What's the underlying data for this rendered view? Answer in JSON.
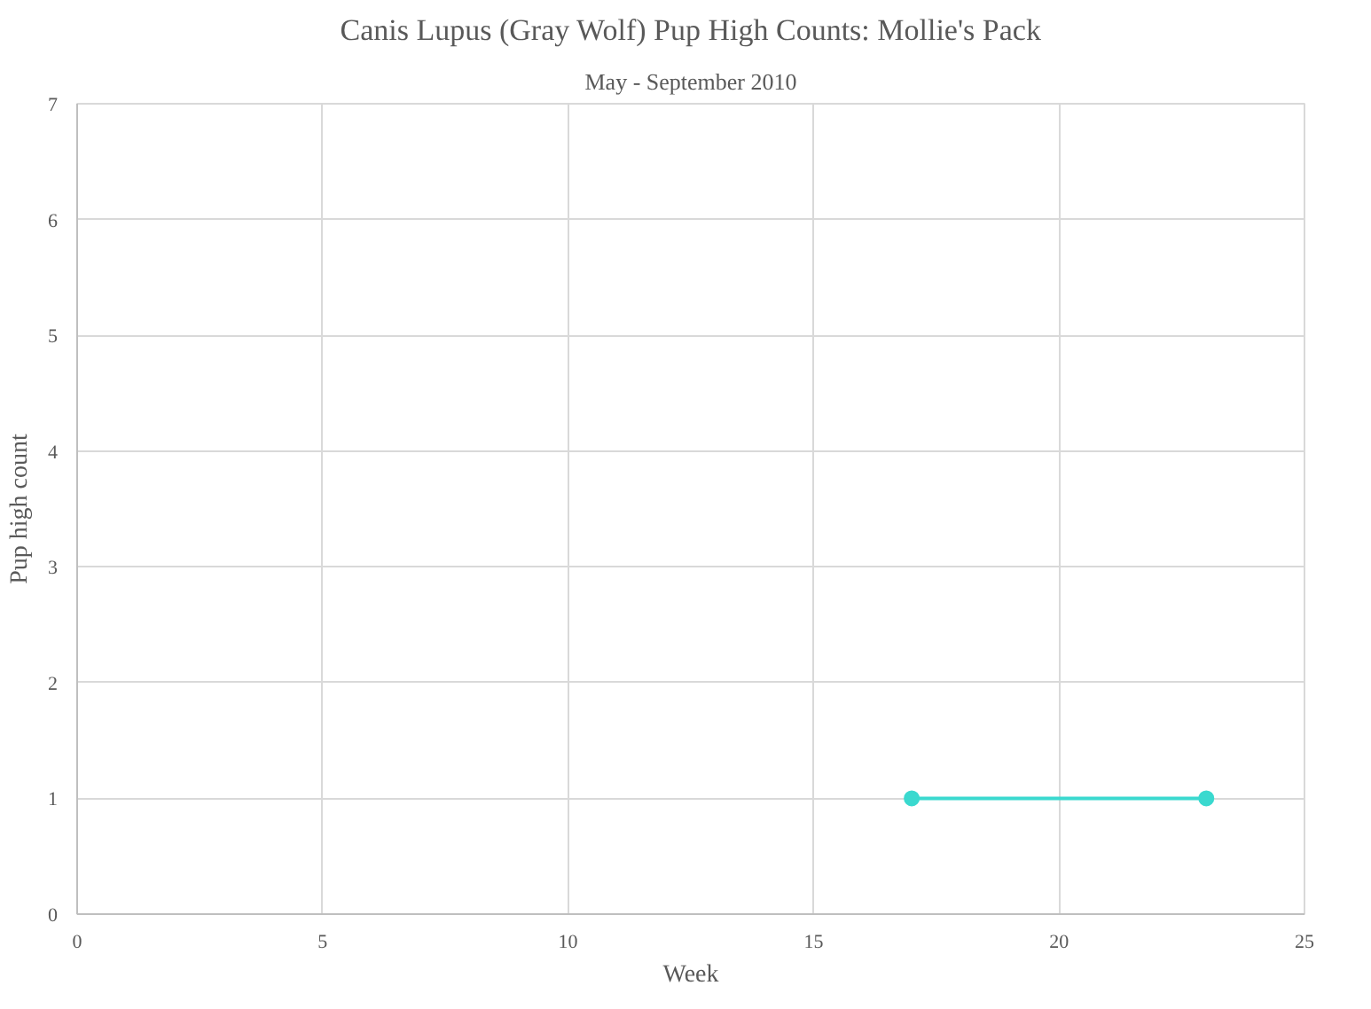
{
  "chart_data": {
    "type": "line",
    "title": "Canis Lupus (Gray Wolf) Pup High Counts: Mollie's Pack",
    "subtitle": "May - September 2010",
    "xlabel": "Week",
    "ylabel": "Pup high count",
    "series": [
      {
        "color": "#3ad9cf",
        "x": [
          17,
          23
        ],
        "values": [
          1,
          1
        ]
      }
    ],
    "xlim": [
      0,
      25
    ],
    "xticks": [
      0,
      5,
      10,
      15,
      20,
      25
    ],
    "ylim": [
      0,
      7
    ],
    "yticks": [
      0,
      1,
      2,
      3,
      4,
      5,
      6,
      7
    ],
    "grid": true,
    "marker": "circle",
    "line_style": "solid"
  }
}
